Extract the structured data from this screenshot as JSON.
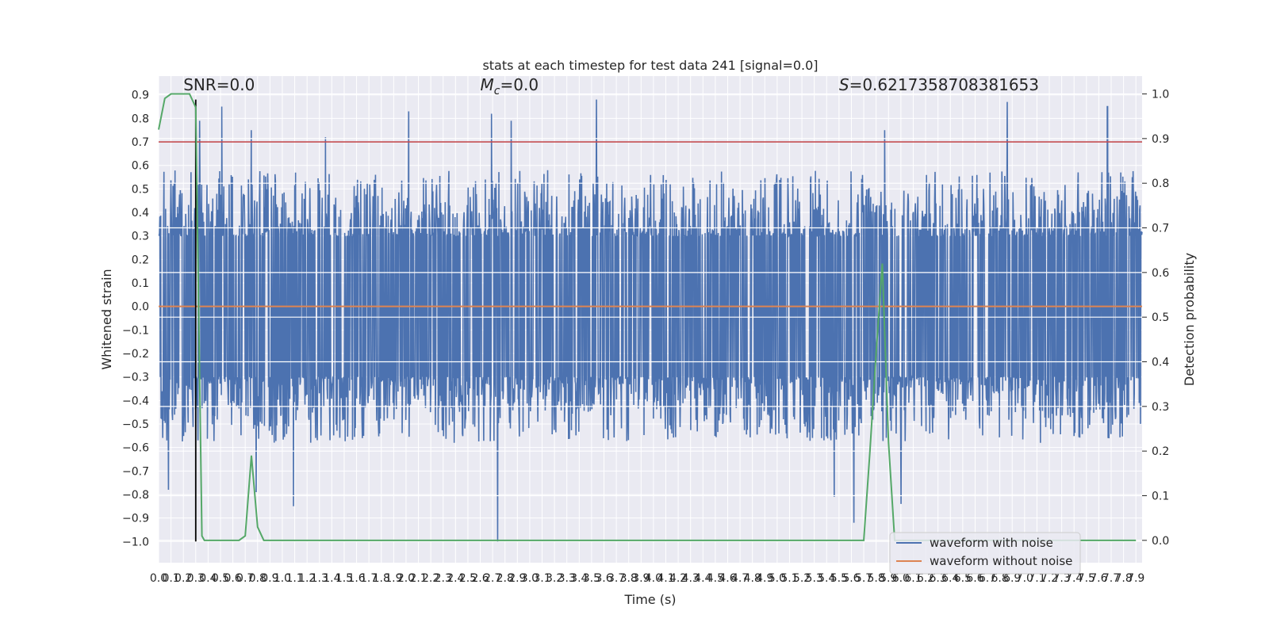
{
  "chart_data": {
    "type": "line",
    "title": "stats at each timestep for test data 241 [signal=0.0]",
    "xlabel": "Time (s)",
    "ylabel_left": "Whitened strain",
    "ylabel_right": "Detection probability",
    "xlim": [
      0.0,
      7.95
    ],
    "ylim_left": [
      -1.09,
      0.98
    ],
    "ylim_right": [
      -0.05,
      1.04
    ],
    "x_tick_step": 0.1,
    "x_tick_labels": [
      "0.0",
      "0.1",
      "0.2",
      "0.3",
      "0.4",
      "0.5",
      "0.6",
      "0.7",
      "0.8",
      "0.9",
      "1.0",
      "1.1",
      "1.2",
      "1.3",
      "1.4",
      "1.5",
      "1.6",
      "1.7",
      "1.8",
      "1.9",
      "2.0",
      "2.1",
      "2.2",
      "2.3",
      "2.4",
      "2.5",
      "2.6",
      "2.7",
      "2.8",
      "2.9",
      "3.0",
      "3.1",
      "3.2",
      "3.3",
      "3.4",
      "3.5",
      "3.6",
      "3.7",
      "3.8",
      "3.9",
      "4.0",
      "4.1",
      "4.2",
      "4.3",
      "4.4",
      "4.5",
      "4.6",
      "4.7",
      "4.8",
      "4.9",
      "5.0",
      "5.1",
      "5.2",
      "5.3",
      "5.4",
      "5.5",
      "5.6",
      "5.7",
      "5.8",
      "5.9",
      "6.0",
      "6.1",
      "6.2",
      "6.3",
      "6.4",
      "6.5",
      "6.6",
      "6.7",
      "6.8",
      "6.9",
      "7.0",
      "7.1",
      "7.2",
      "7.3",
      "7.4",
      "7.5",
      "7.6",
      "7.7",
      "7.8",
      "7.9"
    ],
    "y_left_ticks": [
      -1.0,
      -0.9,
      -0.8,
      -0.7,
      -0.6,
      -0.5,
      -0.4,
      -0.3,
      -0.2,
      -0.1,
      0.0,
      0.1,
      0.2,
      0.3,
      0.4,
      0.5,
      0.6,
      0.7,
      0.8,
      0.9
    ],
    "y_left_tick_labels": [
      "−1.0",
      "−0.9",
      "−0.8",
      "−0.7",
      "−0.6",
      "−0.5",
      "−0.4",
      "−0.3",
      "−0.2",
      "−0.1",
      "0.0",
      "0.1",
      "0.2",
      "0.3",
      "0.4",
      "0.5",
      "0.6",
      "0.7",
      "0.8",
      "0.9"
    ],
    "y_right_ticks": [
      0.0,
      0.1,
      0.2,
      0.3,
      0.4,
      0.5,
      0.6,
      0.7,
      0.8,
      0.9,
      1.0
    ],
    "y_right_tick_labels": [
      "0.0",
      "0.1",
      "0.2",
      "0.3",
      "0.4",
      "0.5",
      "0.6",
      "0.7",
      "0.8",
      "0.9",
      "1.0"
    ],
    "annotations": [
      {
        "text": "SNR=0.0",
        "x": 0.2,
        "y": 0.92
      },
      {
        "text_prefix": "M",
        "text_sub": "c",
        "text_suffix": "=0.0",
        "x": 2.6,
        "y": 0.92
      },
      {
        "text_prefix": "S",
        "text_suffix": "=0.6217358708381653",
        "x": 5.5,
        "y": 0.92
      }
    ],
    "series": [
      {
        "name": "waveform with noise",
        "color": "#4c72b0",
        "axis": "left",
        "envelope_seed": 241,
        "n_samples": 2400,
        "base_amplitude": 0.3,
        "spikes": [
          {
            "x": 0.33,
            "y": 0.79
          },
          {
            "x": 0.51,
            "y": 0.85
          },
          {
            "x": 0.75,
            "y": 0.75
          },
          {
            "x": 1.09,
            "y": 0.71
          },
          {
            "x": 1.35,
            "y": 0.72
          },
          {
            "x": 2.02,
            "y": 0.83
          },
          {
            "x": 2.69,
            "y": 0.82
          },
          {
            "x": 2.85,
            "y": 0.79
          },
          {
            "x": 3.54,
            "y": 0.88
          },
          {
            "x": 5.87,
            "y": 0.75
          },
          {
            "x": 6.86,
            "y": 0.87
          },
          {
            "x": 7.67,
            "y": 0.85
          },
          {
            "x": 0.08,
            "y": -0.78
          },
          {
            "x": 0.79,
            "y": -0.79
          },
          {
            "x": 1.09,
            "y": -0.85
          },
          {
            "x": 2.74,
            "y": -1.0
          },
          {
            "x": 5.46,
            "y": -0.81
          },
          {
            "x": 5.62,
            "y": -0.92
          },
          {
            "x": 6.0,
            "y": -0.84
          }
        ]
      },
      {
        "name": "waveform without noise",
        "color": "#dd8452",
        "axis": "left",
        "x": [
          0.0,
          7.95
        ],
        "y": [
          0.0,
          0.0
        ]
      },
      {
        "color": "#55a868",
        "axis": "right",
        "x": [
          0.0,
          0.05,
          0.1,
          0.15,
          0.2,
          0.25,
          0.3,
          0.35,
          0.37,
          0.4,
          0.45,
          0.5,
          0.55,
          0.6,
          0.65,
          0.7,
          0.75,
          0.8,
          0.85,
          0.9,
          0.95,
          1.0,
          5.7,
          5.75,
          5.8,
          5.85,
          5.9,
          5.95,
          6.0,
          7.9
        ],
        "y": [
          0.92,
          0.99,
          1.0,
          1.0,
          1.0,
          1.0,
          0.97,
          0.01,
          0.0,
          0.0,
          0.0,
          0.0,
          0.0,
          0.0,
          0.0,
          0.01,
          0.19,
          0.03,
          0.0,
          0.0,
          0.0,
          0.0,
          0.0,
          0.2,
          0.42,
          0.62,
          0.22,
          0.0,
          0.0,
          0.0
        ]
      }
    ],
    "horizontal_lines": [
      {
        "y": 0.7,
        "color": "#c44e52",
        "axis": "left"
      }
    ],
    "vertical_lines": [
      {
        "x": 0.3,
        "ymin": -1.0,
        "ymax": 0.88,
        "color": "#000000",
        "axis": "left"
      }
    ],
    "legend": {
      "placement": "lower-right",
      "entries": [
        "waveform with noise",
        "waveform without noise"
      ],
      "colors": [
        "#4c72b0",
        "#dd8452"
      ]
    },
    "grid": true,
    "axes_facecolor": "#eaeaf2",
    "grid_color": "#ffffff"
  }
}
